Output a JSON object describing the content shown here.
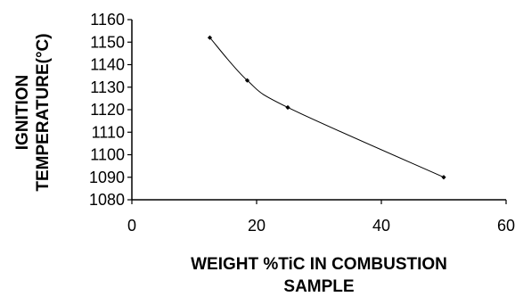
{
  "chart_data": {
    "type": "line",
    "title": "",
    "xlabel_lines": [
      "WEIGHT %TiC IN COMBUSTION",
      "SAMPLE"
    ],
    "ylabel_lines": [
      "IGNITION",
      "TEMPERATURE(°C)"
    ],
    "xlim": [
      0,
      60
    ],
    "ylim": [
      1080,
      1160
    ],
    "x_ticks": [
      0,
      20,
      40,
      60
    ],
    "y_ticks": [
      1080,
      1090,
      1100,
      1110,
      1120,
      1130,
      1140,
      1150,
      1160
    ],
    "grid": false,
    "legend": "none",
    "line_color": "#000000",
    "series": [
      {
        "x": [
          12.5,
          18.5,
          25,
          50
        ],
        "y": [
          1152,
          1133,
          1121,
          1090
        ]
      }
    ]
  }
}
